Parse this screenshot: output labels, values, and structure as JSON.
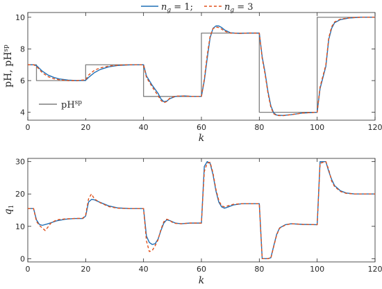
{
  "legend_top": {
    "entries": [
      {
        "sym": "n",
        "sub": "g",
        "rest": " = 1;",
        "color": "#1f6fb5"
      },
      {
        "sym": "n",
        "sub": "g",
        "rest": " = 3",
        "color": "#e0501b"
      }
    ]
  },
  "chart_data": [
    {
      "type": "line",
      "xlabel": "k",
      "ylabel": "pH, pH",
      "ylabel_sup": "sp",
      "xlim": [
        0,
        120
      ],
      "ylim": [
        3.5,
        10.3
      ],
      "xticks": [
        0,
        20,
        40,
        60,
        80,
        100,
        120
      ],
      "yticks": [
        4,
        6,
        8,
        10
      ],
      "legend": {
        "placement": "bottom-left",
        "label": "pH",
        "label_sup": "sp",
        "color": "#7f7f7f"
      },
      "series": [
        {
          "key": "setpoint",
          "color": "#7f7f7f",
          "style": "step",
          "points": [
            [
              0,
              7
            ],
            [
              3,
              7
            ],
            [
              3,
              6
            ],
            [
              20,
              6
            ],
            [
              20,
              7
            ],
            [
              40,
              7
            ],
            [
              40,
              5
            ],
            [
              60,
              5
            ],
            [
              60,
              9
            ],
            [
              80,
              9
            ],
            [
              80,
              4
            ],
            [
              100,
              4
            ],
            [
              100,
              10
            ],
            [
              120,
              10
            ]
          ]
        },
        {
          "key": "ng1",
          "color": "#1f6fb5",
          "style": "solid",
          "points": [
            [
              0,
              7
            ],
            [
              2,
              7
            ],
            [
              3,
              6.95
            ],
            [
              5,
              6.6
            ],
            [
              7,
              6.35
            ],
            [
              9,
              6.2
            ],
            [
              11,
              6.1
            ],
            [
              14,
              6.03
            ],
            [
              17,
              6
            ],
            [
              20,
              6.02
            ],
            [
              21,
              6.2
            ],
            [
              23,
              6.5
            ],
            [
              25,
              6.7
            ],
            [
              28,
              6.87
            ],
            [
              31,
              6.95
            ],
            [
              35,
              6.99
            ],
            [
              40,
              7
            ],
            [
              41,
              6.3
            ],
            [
              43,
              5.7
            ],
            [
              45,
              5.2
            ],
            [
              46,
              4.85
            ],
            [
              47,
              4.67
            ],
            [
              48,
              4.7
            ],
            [
              49,
              4.85
            ],
            [
              51,
              5
            ],
            [
              54,
              5.03
            ],
            [
              57,
              5
            ],
            [
              60,
              5
            ],
            [
              61,
              6
            ],
            [
              62,
              7.4
            ],
            [
              63,
              8.7
            ],
            [
              64,
              9.3
            ],
            [
              65,
              9.45
            ],
            [
              66,
              9.45
            ],
            [
              67,
              9.35
            ],
            [
              68,
              9.2
            ],
            [
              70,
              9.02
            ],
            [
              73,
              8.98
            ],
            [
              76,
              9
            ],
            [
              80,
              9
            ],
            [
              81,
              7.5
            ],
            [
              82,
              6.5
            ],
            [
              83,
              5.3
            ],
            [
              84,
              4.4
            ],
            [
              85,
              3.95
            ],
            [
              86,
              3.82
            ],
            [
              88,
              3.8
            ],
            [
              91,
              3.85
            ],
            [
              95,
              3.95
            ],
            [
              100,
              4
            ],
            [
              101,
              5.5
            ],
            [
              102,
              6.2
            ],
            [
              103,
              6.9
            ],
            [
              104,
              8.6
            ],
            [
              105,
              9.3
            ],
            [
              106,
              9.65
            ],
            [
              108,
              9.85
            ],
            [
              111,
              9.95
            ],
            [
              115,
              10
            ],
            [
              120,
              10
            ]
          ]
        },
        {
          "key": "ng3",
          "color": "#e0501b",
          "style": "dashed",
          "points": [
            [
              0,
              7
            ],
            [
              2,
              7
            ],
            [
              3,
              6.9
            ],
            [
              5,
              6.5
            ],
            [
              7,
              6.25
            ],
            [
              9,
              6.12
            ],
            [
              11,
              6.05
            ],
            [
              14,
              6
            ],
            [
              17,
              6
            ],
            [
              20,
              6.05
            ],
            [
              21,
              6.35
            ],
            [
              23,
              6.65
            ],
            [
              25,
              6.8
            ],
            [
              28,
              6.92
            ],
            [
              31,
              6.97
            ],
            [
              35,
              7
            ],
            [
              40,
              7
            ],
            [
              41,
              6.2
            ],
            [
              43,
              5.6
            ],
            [
              45,
              5.05
            ],
            [
              46,
              4.75
            ],
            [
              47,
              4.6
            ],
            [
              48,
              4.68
            ],
            [
              49,
              4.88
            ],
            [
              51,
              5.02
            ],
            [
              54,
              5.02
            ],
            [
              57,
              5
            ],
            [
              60,
              5
            ],
            [
              61,
              6.1
            ],
            [
              62,
              7.6
            ],
            [
              63,
              8.8
            ],
            [
              64,
              9.28
            ],
            [
              65,
              9.38
            ],
            [
              66,
              9.35
            ],
            [
              67,
              9.25
            ],
            [
              68,
              9.12
            ],
            [
              70,
              9
            ],
            [
              73,
              8.98
            ],
            [
              76,
              9
            ],
            [
              80,
              9
            ],
            [
              81,
              7.4
            ],
            [
              82,
              6.4
            ],
            [
              83,
              5.2
            ],
            [
              84,
              4.3
            ],
            [
              85,
              3.9
            ],
            [
              86,
              3.8
            ],
            [
              88,
              3.78
            ],
            [
              91,
              3.85
            ],
            [
              95,
              3.95
            ],
            [
              100,
              4
            ],
            [
              101,
              5.6
            ],
            [
              102,
              6.3
            ],
            [
              103,
              7
            ],
            [
              104,
              8.7
            ],
            [
              105,
              9.4
            ],
            [
              106,
              9.7
            ],
            [
              108,
              9.88
            ],
            [
              111,
              9.96
            ],
            [
              115,
              10
            ],
            [
              120,
              10
            ]
          ]
        }
      ]
    },
    {
      "type": "line",
      "xlabel": "k",
      "ylabel": "q",
      "ylabel_sub": "1",
      "xlim": [
        0,
        120
      ],
      "ylim": [
        -1,
        31
      ],
      "xticks": [
        0,
        20,
        40,
        60,
        80,
        100,
        120
      ],
      "yticks": [
        0,
        10,
        20,
        30
      ],
      "series": [
        {
          "key": "ng1",
          "color": "#1f6fb5",
          "style": "solid",
          "points": [
            [
              0,
              15.5
            ],
            [
              2,
              15.5
            ],
            [
              3,
              12
            ],
            [
              4,
              10.6
            ],
            [
              5,
              10.3
            ],
            [
              7,
              10.8
            ],
            [
              10,
              11.7
            ],
            [
              13,
              12.2
            ],
            [
              16,
              12.4
            ],
            [
              19,
              12.4
            ],
            [
              20,
              13.2
            ],
            [
              21,
              17.5
            ],
            [
              22,
              18.3
            ],
            [
              23,
              18.2
            ],
            [
              25,
              17.4
            ],
            [
              28,
              16.3
            ],
            [
              31,
              15.7
            ],
            [
              35,
              15.5
            ],
            [
              40,
              15.5
            ],
            [
              41,
              7
            ],
            [
              42,
              5
            ],
            [
              43,
              4.4
            ],
            [
              44,
              4.6
            ],
            [
              45,
              6
            ],
            [
              46,
              8.7
            ],
            [
              47,
              11
            ],
            [
              48,
              12
            ],
            [
              49,
              11.8
            ],
            [
              50,
              11.4
            ],
            [
              51,
              11
            ],
            [
              53,
              10.8
            ],
            [
              56,
              11
            ],
            [
              60,
              11
            ],
            [
              61,
              28.5
            ],
            [
              62,
              30
            ],
            [
              63,
              29.5
            ],
            [
              64,
              26
            ],
            [
              65,
              21
            ],
            [
              66,
              17.5
            ],
            [
              67,
              16
            ],
            [
              68,
              15.6
            ],
            [
              69,
              15.9
            ],
            [
              71,
              16.6
            ],
            [
              74,
              17
            ],
            [
              77,
              17
            ],
            [
              80,
              17
            ],
            [
              81,
              0
            ],
            [
              83,
              0
            ],
            [
              84,
              0.3
            ],
            [
              85,
              4
            ],
            [
              86,
              7.5
            ],
            [
              87,
              9.5
            ],
            [
              89,
              10.5
            ],
            [
              91,
              10.8
            ],
            [
              95,
              10.6
            ],
            [
              100,
              10.5
            ],
            [
              101,
              30
            ],
            [
              103,
              30
            ],
            [
              104,
              27
            ],
            [
              105,
              24.5
            ],
            [
              106,
              22.6
            ],
            [
              108,
              21
            ],
            [
              110,
              20.3
            ],
            [
              113,
              20
            ],
            [
              120,
              20
            ]
          ]
        },
        {
          "key": "ng3",
          "color": "#e0501b",
          "style": "dashed",
          "points": [
            [
              0,
              15.5
            ],
            [
              2,
              15.5
            ],
            [
              3,
              11.5
            ],
            [
              4,
              10.3
            ],
            [
              5,
              9.5
            ],
            [
              6,
              8.7
            ],
            [
              7,
              9.8
            ],
            [
              8,
              11
            ],
            [
              10,
              12
            ],
            [
              13,
              12.3
            ],
            [
              16,
              12.4
            ],
            [
              19,
              12.5
            ],
            [
              20,
              13.5
            ],
            [
              21,
              18.5
            ],
            [
              22,
              20
            ],
            [
              23,
              18.5
            ],
            [
              25,
              17.3
            ],
            [
              28,
              16.1
            ],
            [
              31,
              15.6
            ],
            [
              35,
              15.5
            ],
            [
              40,
              15.5
            ],
            [
              41,
              5.5
            ],
            [
              42,
              2.2
            ],
            [
              43,
              2.5
            ],
            [
              44,
              4
            ],
            [
              45,
              5.8
            ],
            [
              46,
              9
            ],
            [
              47,
              11.4
            ],
            [
              48,
              12.2
            ],
            [
              49,
              11.9
            ],
            [
              50,
              11.2
            ],
            [
              51,
              10.9
            ],
            [
              53,
              10.8
            ],
            [
              56,
              11
            ],
            [
              60,
              11
            ],
            [
              61,
              27
            ],
            [
              62,
              29.5
            ],
            [
              63,
              29.8
            ],
            [
              64,
              26.5
            ],
            [
              65,
              21.5
            ],
            [
              66,
              18
            ],
            [
              67,
              16.3
            ],
            [
              68,
              16
            ],
            [
              69,
              16.3
            ],
            [
              71,
              16.8
            ],
            [
              74,
              17
            ],
            [
              77,
              17
            ],
            [
              80,
              17
            ],
            [
              81,
              0
            ],
            [
              83,
              0
            ],
            [
              84,
              0.2
            ],
            [
              85,
              3.8
            ],
            [
              86,
              7.3
            ],
            [
              87,
              9.4
            ],
            [
              89,
              10.4
            ],
            [
              91,
              10.8
            ],
            [
              95,
              10.6
            ],
            [
              100,
              10.5
            ],
            [
              101,
              29.5
            ],
            [
              103,
              30
            ],
            [
              104,
              27.5
            ],
            [
              105,
              24
            ],
            [
              106,
              22.3
            ],
            [
              108,
              20.8
            ],
            [
              110,
              20.2
            ],
            [
              113,
              20
            ],
            [
              120,
              20
            ]
          ]
        }
      ]
    }
  ]
}
